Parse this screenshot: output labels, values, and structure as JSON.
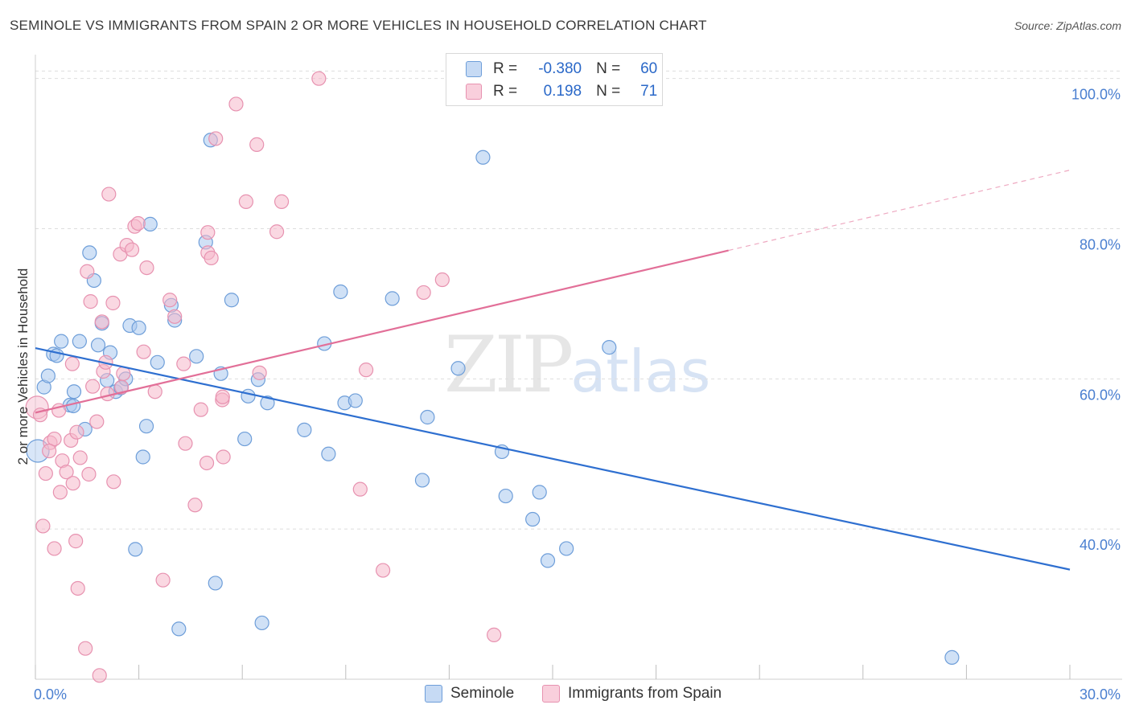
{
  "title": "SEMINOLE VS IMMIGRANTS FROM SPAIN 2 OR MORE VEHICLES IN HOUSEHOLD CORRELATION CHART",
  "source": "Source: ZipAtlas.com",
  "watermark": {
    "zip": "ZIP",
    "atlas": "atlas"
  },
  "legend_top": [
    {
      "r_label": "R =",
      "r_value": "-0.380",
      "n_label": "N =",
      "n_value": "60"
    },
    {
      "r_label": "R =",
      "r_value": "0.198",
      "n_label": "N =",
      "n_value": "71"
    }
  ],
  "legend_bottom": [
    "Seminole",
    "Immigrants from Spain"
  ],
  "colors": {
    "blue_fill": "#a9c8ef",
    "blue_stroke": "#6e9ed9",
    "blue_line": "#2e6fd0",
    "pink_fill": "#f5b8cb",
    "pink_stroke": "#e792b0",
    "pink_line": "#e26f98",
    "axis_text": "#4a7fd0",
    "grid": "#dedede"
  },
  "chart_data": {
    "type": "scatter",
    "title": "SEMINOLE VS IMMIGRANTS FROM SPAIN 2 OR MORE VEHICLES IN HOUSEHOLD CORRELATION CHART",
    "xlabel": "",
    "ylabel": "2 or more Vehicles in Household",
    "xlim": [
      0,
      30
    ],
    "ylim": [
      20,
      102
    ],
    "x_tick_labels": [
      {
        "value": 0,
        "label": "0.0%"
      },
      {
        "value": 30,
        "label": "30.0%"
      }
    ],
    "y_tick_labels": [
      {
        "value": 40,
        "label": "40.0%"
      },
      {
        "value": 60,
        "label": "60.0%"
      },
      {
        "value": 80,
        "label": "80.0%"
      },
      {
        "value": 100,
        "label": "100.0%"
      }
    ],
    "grid": true,
    "legend_placement": "bottom",
    "series": [
      {
        "name": "Seminole",
        "color": "blue",
        "r": -0.38,
        "n": 60,
        "trend": {
          "x": [
            0,
            30
          ],
          "y": [
            64.1,
            34.6
          ],
          "style": "solid"
        },
        "points": [
          [
            0.07,
            50.4
          ],
          [
            0.25,
            58.9
          ],
          [
            0.37,
            60.4
          ],
          [
            0.52,
            63.3
          ],
          [
            0.62,
            63.1
          ],
          [
            0.75,
            65.0
          ],
          [
            1.0,
            56.5
          ],
          [
            1.12,
            58.3
          ],
          [
            1.1,
            56.4
          ],
          [
            1.28,
            65.0
          ],
          [
            1.44,
            53.3
          ],
          [
            1.57,
            76.8
          ],
          [
            1.7,
            73.1
          ],
          [
            1.82,
            64.5
          ],
          [
            1.93,
            67.4
          ],
          [
            2.17,
            63.5
          ],
          [
            2.08,
            59.8
          ],
          [
            2.33,
            58.3
          ],
          [
            2.48,
            58.8
          ],
          [
            2.62,
            60.0
          ],
          [
            2.74,
            67.1
          ],
          [
            3.0,
            66.8
          ],
          [
            3.12,
            49.6
          ],
          [
            3.22,
            53.7
          ],
          [
            3.33,
            80.6
          ],
          [
            3.54,
            62.2
          ],
          [
            3.94,
            69.8
          ],
          [
            4.04,
            67.8
          ],
          [
            4.16,
            26.7
          ],
          [
            4.67,
            63.0
          ],
          [
            4.94,
            78.2
          ],
          [
            5.08,
            91.8
          ],
          [
            5.22,
            32.8
          ],
          [
            5.38,
            60.7
          ],
          [
            5.69,
            70.5
          ],
          [
            6.07,
            52.0
          ],
          [
            6.17,
            57.7
          ],
          [
            6.46,
            59.9
          ],
          [
            6.57,
            27.5
          ],
          [
            6.73,
            56.8
          ],
          [
            7.8,
            53.2
          ],
          [
            8.38,
            64.7
          ],
          [
            8.5,
            50.0
          ],
          [
            8.85,
            71.6
          ],
          [
            8.97,
            56.8
          ],
          [
            9.28,
            57.1
          ],
          [
            10.35,
            70.7
          ],
          [
            11.22,
            46.5
          ],
          [
            11.37,
            54.9
          ],
          [
            12.26,
            61.4
          ],
          [
            12.98,
            89.5
          ],
          [
            13.53,
            50.3
          ],
          [
            13.64,
            44.4
          ],
          [
            14.42,
            41.3
          ],
          [
            14.62,
            44.9
          ],
          [
            14.86,
            35.8
          ],
          [
            15.4,
            37.4
          ],
          [
            16.64,
            64.2
          ],
          [
            26.58,
            22.9
          ],
          [
            2.9,
            37.3
          ]
        ]
      },
      {
        "name": "Immigrants from Spain",
        "color": "pink",
        "r": 0.198,
        "n": 71,
        "trend": {
          "x": [
            0,
            20.1
          ],
          "y": [
            55.5,
            77.1
          ],
          "style": "solid",
          "dashed_to": {
            "x": 30,
            "y": 87.8
          }
        },
        "points": [
          [
            0.05,
            56.2
          ],
          [
            0.14,
            55.2
          ],
          [
            0.22,
            40.4
          ],
          [
            0.3,
            47.4
          ],
          [
            0.43,
            51.5
          ],
          [
            0.55,
            52.0
          ],
          [
            0.4,
            50.4
          ],
          [
            0.55,
            37.4
          ],
          [
            0.68,
            55.8
          ],
          [
            0.72,
            44.9
          ],
          [
            0.78,
            49.1
          ],
          [
            0.9,
            47.6
          ],
          [
            1.03,
            51.8
          ],
          [
            1.07,
            62.0
          ],
          [
            1.09,
            46.1
          ],
          [
            1.17,
            38.4
          ],
          [
            1.2,
            52.9
          ],
          [
            1.23,
            32.1
          ],
          [
            1.3,
            49.5
          ],
          [
            1.45,
            24.1
          ],
          [
            1.5,
            74.3
          ],
          [
            1.55,
            47.3
          ],
          [
            1.6,
            70.3
          ],
          [
            1.66,
            59.0
          ],
          [
            1.78,
            54.3
          ],
          [
            1.86,
            20.5
          ],
          [
            1.93,
            67.6
          ],
          [
            1.97,
            61.0
          ],
          [
            2.04,
            62.2
          ],
          [
            2.09,
            58.0
          ],
          [
            2.13,
            84.6
          ],
          [
            2.25,
            70.1
          ],
          [
            2.27,
            46.3
          ],
          [
            2.46,
            76.6
          ],
          [
            2.55,
            60.7
          ],
          [
            2.65,
            77.8
          ],
          [
            2.8,
            77.2
          ],
          [
            2.88,
            80.3
          ],
          [
            2.98,
            80.7
          ],
          [
            3.14,
            63.6
          ],
          [
            3.23,
            74.8
          ],
          [
            3.47,
            58.3
          ],
          [
            3.7,
            33.2
          ],
          [
            3.9,
            70.5
          ],
          [
            4.04,
            68.3
          ],
          [
            4.3,
            62.0
          ],
          [
            4.35,
            51.4
          ],
          [
            4.63,
            43.2
          ],
          [
            4.97,
            48.8
          ],
          [
            5.0,
            76.8
          ],
          [
            5.0,
            79.5
          ],
          [
            5.1,
            76.1
          ],
          [
            5.23,
            92.0
          ],
          [
            5.42,
            57.2
          ],
          [
            5.43,
            57.6
          ],
          [
            5.82,
            96.6
          ],
          [
            6.11,
            83.6
          ],
          [
            6.42,
            91.2
          ],
          [
            6.5,
            60.8
          ],
          [
            7.0,
            79.6
          ],
          [
            7.14,
            83.6
          ],
          [
            8.22,
            100.0
          ],
          [
            9.42,
            45.3
          ],
          [
            9.59,
            61.2
          ],
          [
            10.08,
            34.5
          ],
          [
            11.26,
            71.5
          ],
          [
            11.8,
            73.2
          ],
          [
            13.3,
            25.9
          ],
          [
            5.45,
            49.6
          ],
          [
            4.8,
            55.9
          ],
          [
            2.5,
            58.9
          ]
        ]
      }
    ]
  }
}
